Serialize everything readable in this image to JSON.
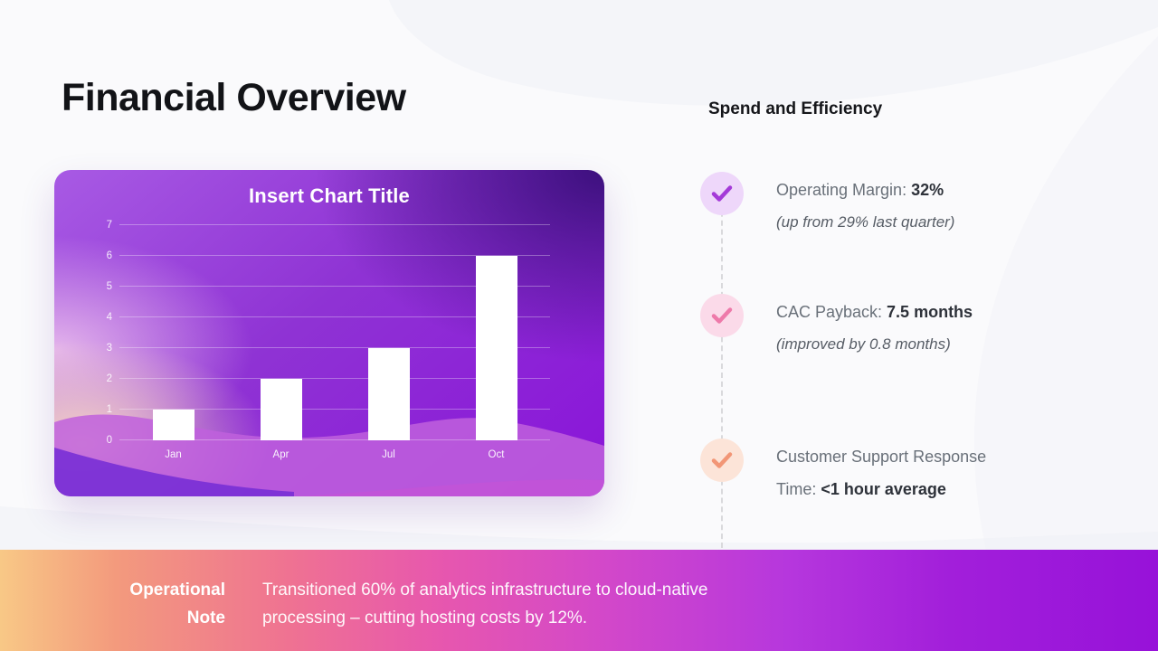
{
  "slide": {
    "title": "Financial Overview"
  },
  "chart_card": {
    "title": "Insert Chart Title"
  },
  "chart_data": {
    "type": "bar",
    "title": "Insert Chart Title",
    "categories": [
      "Jan",
      "Apr",
      "Jul",
      "Oct"
    ],
    "values": [
      1,
      2,
      3,
      6
    ],
    "xlabel": "",
    "ylabel": "",
    "ylim": [
      0,
      7
    ],
    "yticks": [
      0,
      1,
      2,
      3,
      4,
      5,
      6,
      7
    ],
    "grid": true,
    "legend": false,
    "bar_color": "#ffffff"
  },
  "right_panel": {
    "heading": "Spend and Efficiency",
    "items": [
      {
        "icon": "check-icon",
        "circle_color": "#eed7fa",
        "check_color": "#a43ad8",
        "prefix": "Operating Margin: ",
        "value": "32%",
        "note": "(up from 29% last quarter)"
      },
      {
        "icon": "check-icon",
        "circle_color": "#fbdae9",
        "check_color": "#ee7aaa",
        "prefix": "CAC Payback: ",
        "value": "7.5 months",
        "note": "(improved by 0.8 months)"
      },
      {
        "icon": "check-icon",
        "circle_color": "#fce4d8",
        "check_color": "#f29676",
        "prefix": "Customer Support Response Time: ",
        "value": "<1 hour average",
        "note": ""
      }
    ]
  },
  "footer": {
    "label_lines": [
      "Operational",
      "Note"
    ],
    "body_lines": [
      "Transitioned 60% of analytics infrastructure to cloud-native",
      "processing – cutting hosting costs by 12%."
    ],
    "accent_left": "#f8c886",
    "accent_right": "#9712d9"
  }
}
